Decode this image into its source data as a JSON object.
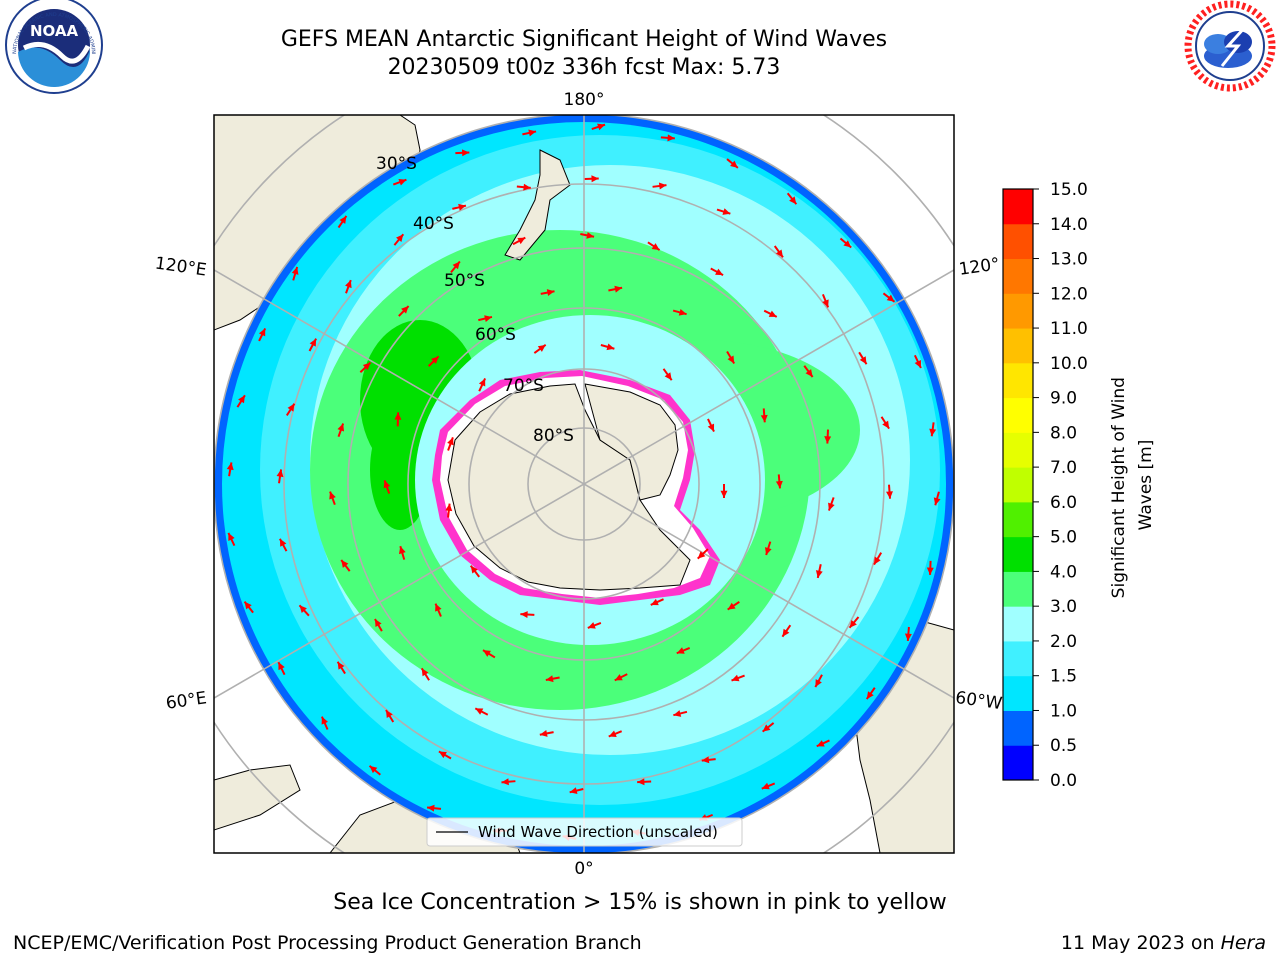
{
  "title": {
    "line1": "GEFS MEAN Antarctic Significant Height of Wind Waves",
    "line2": "20230509 t00z 336h fcst   Max: 5.73"
  },
  "logos": {
    "left": {
      "name": "NOAA",
      "ring_text": "NATIONAL OCEANIC AND ATMOSPHERIC ADMINISTRATION",
      "bottom_text": "U.S. DEPARTMENT OF COMMERCE"
    },
    "right": {
      "name": "NATIONAL WEATHER SERVICE"
    }
  },
  "map": {
    "projection": "south polar stereographic",
    "longitude_labels": {
      "top": "180°",
      "bottom": "0°",
      "upper_left": "120°E",
      "upper_right": "120°",
      "lower_left": "60°E",
      "lower_right": "60°W"
    },
    "latitude_labels": [
      "30°S",
      "40°S",
      "50°S",
      "60°S",
      "70°S",
      "80°S"
    ],
    "legend": "Wind Wave Direction (unscaled)",
    "arrow_color": "#ff0000",
    "land_color": "#efecdc",
    "sea_ice_colors": [
      "#ff00ff",
      "#ff66cc",
      "#ffd700"
    ]
  },
  "colorbar": {
    "label": "Significant Height of Wind Waves [m]",
    "ticks": [
      "0.0",
      "0.5",
      "1.0",
      "1.5",
      "2.0",
      "3.0",
      "4.0",
      "5.0",
      "6.0",
      "7.0",
      "8.0",
      "9.0",
      "10.0",
      "11.0",
      "12.0",
      "13.0",
      "14.0",
      "15.0"
    ],
    "colors": [
      "#0000ff",
      "#0064ff",
      "#00e6ff",
      "#40f0ff",
      "#a0ffff",
      "#4bff7a",
      "#00e000",
      "#50f000",
      "#c0ff00",
      "#e6ff00",
      "#ffff00",
      "#ffe600",
      "#ffc000",
      "#ff9900",
      "#ff7700",
      "#ff5000",
      "#ff0000"
    ]
  },
  "caption": "Sea Ice Concentration > 15% is shown in pink to yellow",
  "footer": {
    "credit": "NCEP/EMC/Verification Post Processing Product Generation Branch",
    "date": "11 May 2023 on",
    "machine": "Hera"
  }
}
